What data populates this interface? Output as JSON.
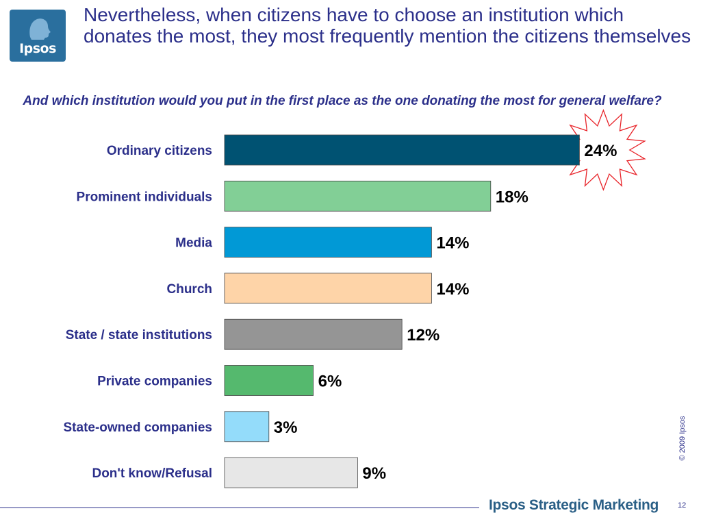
{
  "logo": {
    "text": "Ipsos",
    "color": "#2a6f9e"
  },
  "title": "Nevertheless, when citizens have to choose an institution which donates the most, they most frequently mention the citizens themselves",
  "subtitle": "And which institution would you put in the first place as the one donating the most for general welfare?",
  "chart_data": {
    "type": "bar",
    "orientation": "horizontal",
    "title": "",
    "xlabel": "",
    "ylabel": "",
    "xlim": [
      0,
      24
    ],
    "grid": false,
    "legend": "none",
    "unit": "%",
    "categories": [
      "Ordinary citizens",
      "Prominent individuals",
      "Media",
      "Church",
      "State / state institutions",
      "Private companies",
      "State-owned companies",
      "Don't know/Refusal"
    ],
    "values": [
      24,
      18,
      14,
      14,
      12,
      6,
      3,
      9
    ],
    "value_labels": [
      "24%",
      "18%",
      "14%",
      "14%",
      "12%",
      "6%",
      "3%",
      "9%"
    ],
    "colors": [
      "#005272",
      "#82cf96",
      "#0199d6",
      "#fed4a8",
      "#959595",
      "#55b96e",
      "#94dcfa",
      "#e7e7e7"
    ],
    "highlight": {
      "category": "Ordinary citizens",
      "shape": "starburst",
      "color": "#e8242a"
    }
  },
  "colors": {
    "title": "#2b2f8a",
    "category_label": "#2b2f8a",
    "value_label": "#000000"
  },
  "copyright": "© 2009 Ipsos",
  "footer": {
    "brand": "Ipsos Strategic Marketing",
    "page": "12"
  }
}
